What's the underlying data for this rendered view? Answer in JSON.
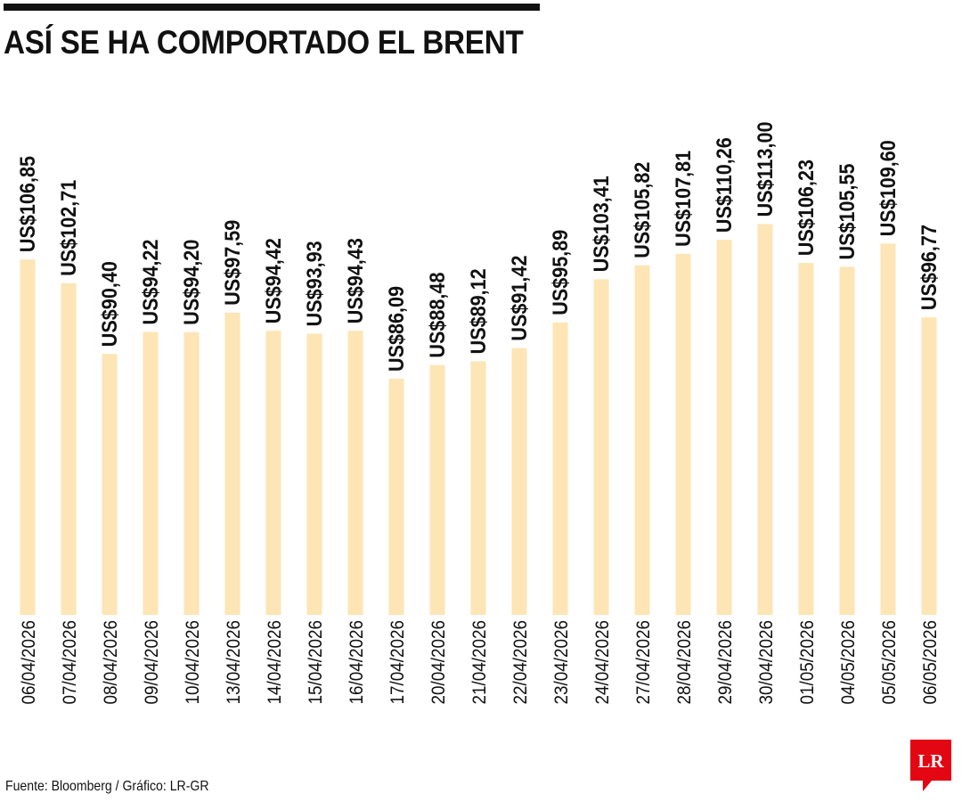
{
  "title": "ASÍ SE HA COMPORTADO EL BRENT",
  "source": "Fuente: Bloomberg / Gráfico: LR-GR",
  "logo": {
    "text": "LR",
    "color": "#e30613"
  },
  "colors": {
    "bar": "#fde5b5",
    "text": "#111111",
    "rule": "#111111"
  },
  "chart_data": {
    "type": "bar",
    "categories": [
      "06/04/2026",
      "07/04/2026",
      "08/04/2026",
      "09/04/2026",
      "10/04/2026",
      "13/04/2026",
      "14/04/2026",
      "15/04/2026",
      "16/04/2026",
      "17/04/2026",
      "20/04/2026",
      "21/04/2026",
      "22/04/2026",
      "23/04/2026",
      "24/04/2026",
      "27/04/2026",
      "28/04/2026",
      "29/04/2026",
      "30/04/2026",
      "01/05/2026",
      "04/05/2026",
      "05/05/2026",
      "06/05/2026"
    ],
    "values": [
      106.85,
      102.71,
      90.4,
      94.22,
      94.2,
      97.59,
      94.42,
      93.93,
      94.43,
      86.09,
      88.48,
      89.12,
      91.42,
      95.89,
      103.41,
      105.82,
      107.81,
      110.26,
      113.0,
      106.23,
      105.55,
      109.6,
      96.77
    ],
    "labels": [
      "US$106,85",
      "US$102,71",
      "US$90,40",
      "US$94,22",
      "US$94,20",
      "US$97,59",
      "US$94,42",
      "US$93,93",
      "US$94,43",
      "US$86,09",
      "US$88,48",
      "US$89,12",
      "US$91,42",
      "US$95,89",
      "US$103,41",
      "US$105,82",
      "US$107,81",
      "US$110,26",
      "US$113,00",
      "US$106,23",
      "US$105,55",
      "US$109,60",
      "US$96,77"
    ],
    "ylim": [
      45,
      115
    ],
    "grid": false,
    "legend": "none"
  }
}
